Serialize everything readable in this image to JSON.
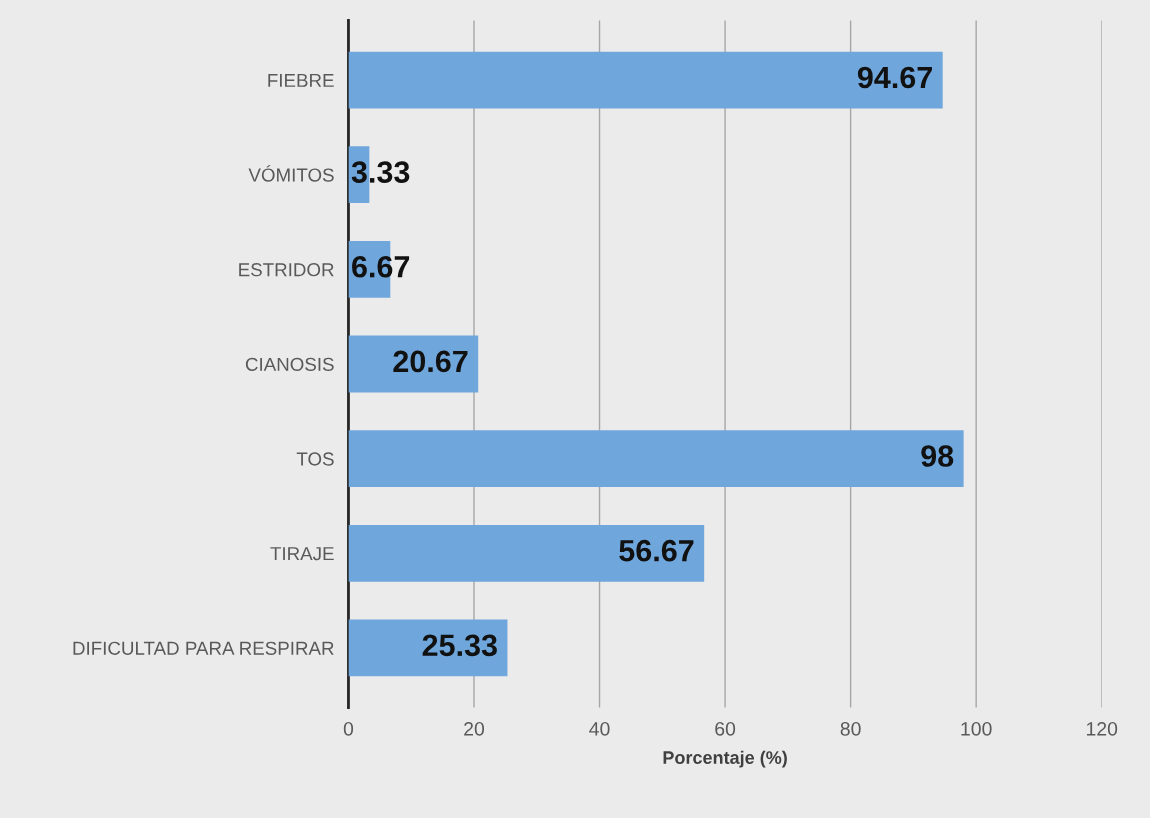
{
  "chart_data": {
    "type": "bar",
    "orientation": "horizontal",
    "categories": [
      "FIEBRE",
      "VÓMITOS",
      "ESTRIDOR",
      "CIANOSIS",
      "TOS",
      "TIRAJE",
      "DIFICULTAD PARA RESPIRAR"
    ],
    "values": [
      94.67,
      3.33,
      6.67,
      20.67,
      98,
      56.67,
      25.33
    ],
    "color": "#6fa6db",
    "xlabel": "Porcentaje (%)",
    "xlim": [
      0,
      120
    ],
    "xticks": [
      0,
      20,
      40,
      60,
      80,
      100,
      120
    ],
    "grid": "x",
    "data_labels": true
  }
}
